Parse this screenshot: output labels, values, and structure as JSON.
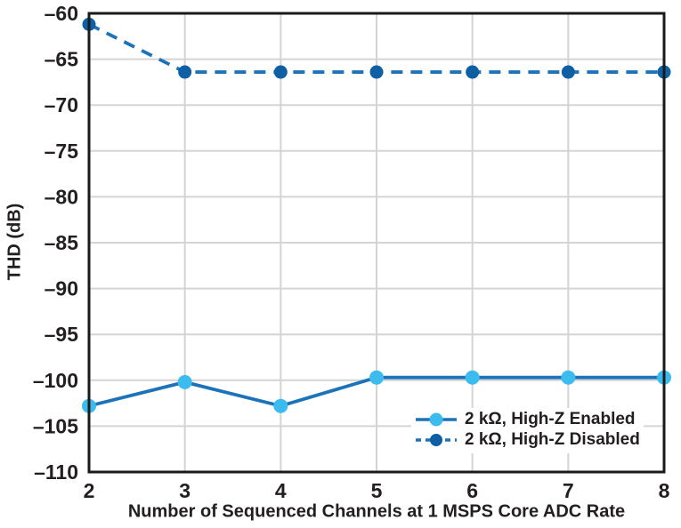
{
  "chart_data": {
    "type": "line",
    "title": "",
    "xlabel": "Number of Sequenced Channels at 1 MSPS Core ADC Rate",
    "ylabel": "THD (dB)",
    "x": [
      2,
      3,
      4,
      5,
      6,
      7,
      8
    ],
    "xlim": [
      2,
      8
    ],
    "ylim": [
      -110,
      -60
    ],
    "xticks": [
      2,
      3,
      4,
      5,
      6,
      7,
      8
    ],
    "yticks": [
      -60,
      -65,
      -70,
      -75,
      -80,
      -85,
      -90,
      -95,
      -100,
      -105,
      -110
    ],
    "grid": true,
    "legend_position": "inside-bottom-right",
    "series": [
      {
        "name": "2 kΩ, High-Z Enabled",
        "line_style": "solid",
        "line_color": "#1d73b9",
        "marker_color": "#3cbcee",
        "marker": "circle",
        "values": [
          -102.8,
          -100.2,
          -102.8,
          -99.7,
          -99.7,
          -99.7,
          -99.7
        ]
      },
      {
        "name": "2 kΩ, High-Z Disabled",
        "line_style": "dashed",
        "line_color": "#1d73b9",
        "marker_color": "#0e5fa4",
        "marker": "circle",
        "values": [
          -61.2,
          -66.4,
          -66.4,
          -66.4,
          -66.4,
          -66.4,
          -66.4
        ]
      }
    ]
  },
  "colors": {
    "background": "#ffffff",
    "axis": "#1a1a1a",
    "grid": "#d4d4d4",
    "text": "#231f20"
  }
}
